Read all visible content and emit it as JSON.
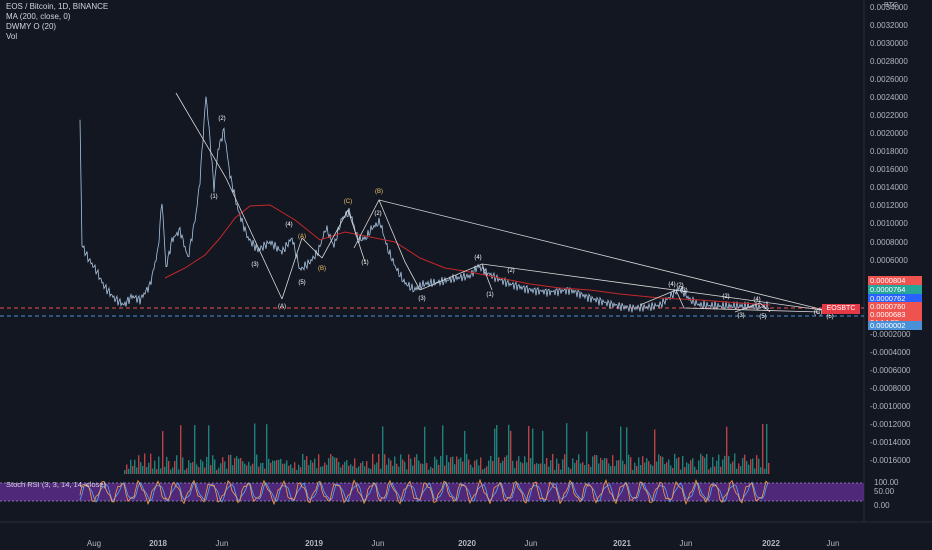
{
  "legend": {
    "title": "EOS / Bitcoin, 1D, BINANCE",
    "ma": "MA (200, close, 0)",
    "dwmy": "DWMY O (20)",
    "vol": "Vol"
  },
  "price_scale": {
    "currency": "BTC",
    "labels": [
      "0.0034000",
      "0.0032000",
      "0.0030000",
      "0.0028000",
      "0.0026000",
      "0.0024000",
      "0.0022000",
      "0.0020000",
      "0.0018000",
      "0.0016000",
      "0.0014000",
      "0.0012000",
      "0.0010000",
      "0.0008000",
      "0.0006000",
      "0.0004000",
      "0.0002000",
      "-0.0002000",
      "-0.0004000",
      "-0.0006000",
      "-0.0008000",
      "-0.0010000",
      "-0.0012000",
      "-0.0014000",
      "-0.0016000"
    ],
    "tags": [
      {
        "text": "0.0000804",
        "color": "#ef5350"
      },
      {
        "text": "0.0000764",
        "color": "#26a69a"
      },
      {
        "text": "0.0000762",
        "color": "#2962ff"
      },
      {
        "text": "0.0000760",
        "color": "#ef5350"
      },
      {
        "text": "0.0000683",
        "color": "#ef5350"
      },
      {
        "text": "04:14:55",
        "color": "#ef5350"
      },
      {
        "text": "0.0000002",
        "color": "#4a90d9"
      }
    ],
    "symbol_tag": "EOSBTC"
  },
  "time_axis": {
    "labels": [
      {
        "text": "Aug",
        "bold": false
      },
      {
        "text": "2018",
        "bold": true
      },
      {
        "text": "Jun",
        "bold": false
      },
      {
        "text": "2019",
        "bold": true
      },
      {
        "text": "Jun",
        "bold": false
      },
      {
        "text": "2020",
        "bold": true
      },
      {
        "text": "Jun",
        "bold": false
      },
      {
        "text": "2021",
        "bold": true
      },
      {
        "text": "Jun",
        "bold": false
      },
      {
        "text": "2022",
        "bold": true
      },
      {
        "text": "Jun",
        "bold": false
      }
    ]
  },
  "rsi": {
    "title": "Stoch RSI (3, 3, 14, 14, close)",
    "labels": [
      "100.00",
      "50.00",
      "0.00"
    ]
  },
  "waves": [
    {
      "t": "(2)",
      "c": "#ffffff"
    },
    {
      "t": "(1)",
      "c": "#ffffff"
    },
    {
      "t": "(3)",
      "c": "#ffffff"
    },
    {
      "t": "(4)",
      "c": "#ffffff"
    },
    {
      "t": "(A)",
      "c": "#ffffff"
    },
    {
      "t": "(5)",
      "c": "#ffffff"
    },
    {
      "t": "(B)",
      "c": "#f5c96a"
    },
    {
      "t": "(C)",
      "c": "#f5c96a"
    },
    {
      "t": "(B)",
      "c": "#f5c96a"
    },
    {
      "t": "(2)",
      "c": "#ffffff"
    },
    {
      "t": "(1)",
      "c": "#ffffff"
    },
    {
      "t": "(3)",
      "c": "#ffffff"
    },
    {
      "t": "(4)",
      "c": "#ffffff"
    },
    {
      "t": "(2)",
      "c": "#ffffff"
    },
    {
      "t": "(1)",
      "c": "#ffffff"
    },
    {
      "t": "(A)",
      "c": "#f5c96a"
    },
    {
      "t": "(4)",
      "c": "#ffffff"
    },
    {
      "t": "(2)",
      "c": "#ffffff"
    },
    {
      "t": "(3)",
      "c": "#ffffff"
    },
    {
      "t": "(2)",
      "c": "#ffffff"
    },
    {
      "t": "(4)",
      "c": "#ffffff"
    },
    {
      "t": "(3)",
      "c": "#ffffff"
    },
    {
      "t": "(5)",
      "c": "#ffffff"
    },
    {
      "t": "(C)",
      "c": "#ffffff"
    },
    {
      "t": "(5)",
      "c": "#ffffff"
    }
  ],
  "colors": {
    "background": "#131722",
    "price_line": "#a8c4e0",
    "ma_line": "#c62828",
    "trendline": "#d8d8d8",
    "vol_up": "#26a69a",
    "vol_down": "#ef5350",
    "rsi_band": "#5b2c8a",
    "rsi_k": "#ff9f43",
    "rsi_d": "#4dabf7"
  }
}
